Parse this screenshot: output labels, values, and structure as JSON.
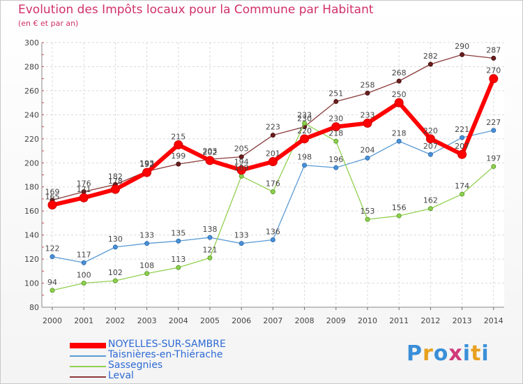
{
  "title": "Evolution des Impôts locaux pour la Commune par Habitant",
  "subtitle": "(en € et par an)",
  "logo": "Proxiti",
  "chart_data": {
    "type": "line",
    "title": "Evolution des Impôts locaux pour la Commune par Habitant",
    "subtitle": "(en € et par an)",
    "xlabel": "",
    "ylabel": "",
    "categories": [
      "2000",
      "2001",
      "2002",
      "2003",
      "2004",
      "2005",
      "2006",
      "2007",
      "2008",
      "2009",
      "2010",
      "2011",
      "2012",
      "2013",
      "2014"
    ],
    "ylim": [
      80,
      300
    ],
    "yticks": [
      80,
      100,
      120,
      140,
      160,
      180,
      200,
      220,
      240,
      260,
      280,
      300
    ],
    "grid": true,
    "legend_position": "bottom-left",
    "series": [
      {
        "name": "NOYELLES-SUR-SAMBRE",
        "color": "#ff0000",
        "values": [
          165,
          171,
          178,
          192,
          215,
          202,
          194,
          201,
          220,
          230,
          233,
          250,
          220,
          207,
          270
        ]
      },
      {
        "name": "Taisnières-en-Thiérache",
        "color": "#5b9bd5",
        "values": [
          122,
          117,
          130,
          133,
          135,
          138,
          133,
          136,
          198,
          196,
          204,
          218,
          207,
          221,
          227
        ]
      },
      {
        "name": "Sassegnies",
        "color": "#92d050",
        "values": [
          94,
          100,
          102,
          108,
          113,
          121,
          189,
          176,
          233,
          218,
          153,
          156,
          162,
          174,
          197
        ]
      },
      {
        "name": "Leval",
        "color": "#8b3a3a",
        "values": [
          169,
          176,
          182,
          193,
          199,
          203,
          205,
          223,
          230,
          251,
          258,
          268,
          282,
          290,
          287
        ]
      }
    ],
    "labels": {
      "NOYELLES-SUR-SAMBRE": [
        "165",
        "171",
        "178",
        "192",
        "215",
        "202",
        "194",
        "201",
        "220",
        "230",
        "233",
        "250",
        "220",
        "207",
        "270"
      ],
      "Taisnières-en-Thiérache": [
        "122",
        "117",
        "130",
        "133",
        "135",
        "138",
        "133",
        "136",
        "198",
        "196",
        "204",
        "218",
        "207",
        "221",
        "227"
      ],
      "Sassegnies": [
        "94",
        "100",
        "102",
        "108",
        "113",
        "121",
        "189",
        "176",
        "233",
        "218",
        "153",
        "156",
        "162",
        "174",
        "197"
      ],
      "Leval": [
        "169",
        "176",
        "182",
        "193",
        "199",
        "203",
        "205",
        "223",
        "230",
        "251",
        "258",
        "268",
        "282",
        "290",
        "287"
      ]
    }
  }
}
